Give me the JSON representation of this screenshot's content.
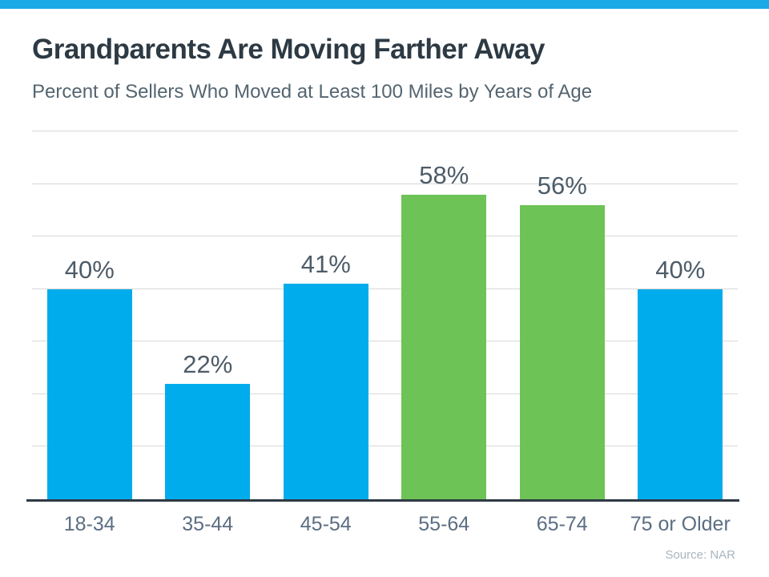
{
  "page": {
    "top_bar_color": "#1AAAE8",
    "background_color": "#ffffff"
  },
  "header": {
    "title": "Grandparents Are Moving Farther Away",
    "subtitle": "Percent of Sellers Who Moved at Least 100 Miles by Years of Age"
  },
  "chart_data": {
    "type": "bar",
    "title": "Grandparents Are Moving Farther Away",
    "subtitle": "Percent of Sellers Who Moved at Least 100 Miles by Years of Age",
    "categories": [
      "18-34",
      "35-44",
      "45-54",
      "55-64",
      "65-74",
      "75 or Older"
    ],
    "values": [
      40,
      22,
      41,
      58,
      56,
      40
    ],
    "value_labels": [
      "40%",
      "22%",
      "41%",
      "58%",
      "56%",
      "40%"
    ],
    "bar_colors": [
      "#00ACEC",
      "#00ACEC",
      "#00ACEC",
      "#6EC356",
      "#6EC356",
      "#00ACEC"
    ],
    "xlabel": "",
    "ylabel": "",
    "ylim": [
      0,
      70
    ],
    "gridline_step": 10,
    "grid": true,
    "legend": false,
    "axis_line_color": "#2E3A44",
    "gridline_color": "#D8D8D8",
    "value_label_color": "#4D5C68",
    "category_label_color": "#5B6E82"
  },
  "footer": {
    "source": "Source: NAR"
  }
}
